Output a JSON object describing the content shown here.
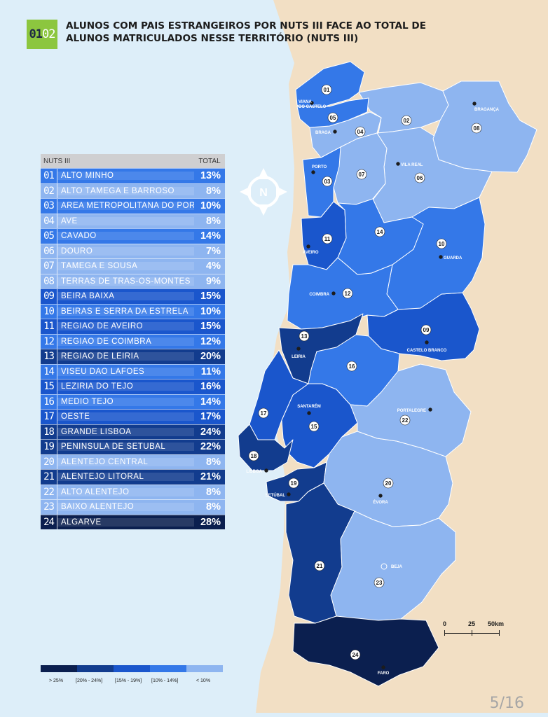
{
  "header": {
    "badge_number": "01",
    "badge_sub": "02",
    "title": "ALUNOS COM PAIS ESTRANGEIROS POR NUTS III FACE AO TOTAL DE ALUNOS MATRICULADOS NESSE TERRITÓRIO (NUTS III)"
  },
  "table": {
    "col_region": "NUTS III",
    "col_total": "TOTAL",
    "rows": [
      {
        "code": "01",
        "name": "ALTO MINHO",
        "value": "13%",
        "pct": 13
      },
      {
        "code": "02",
        "name": "ALTO TÂMEGA E BARROSO",
        "value": "8%",
        "pct": 8
      },
      {
        "code": "03",
        "name": "ÁREA METROPOLITANA DO PORTO",
        "value": "10%",
        "pct": 10
      },
      {
        "code": "04",
        "name": "AVE",
        "value": "8%",
        "pct": 8
      },
      {
        "code": "05",
        "name": "CÁVADO",
        "value": "14%",
        "pct": 14
      },
      {
        "code": "06",
        "name": "DOURO",
        "value": "7%",
        "pct": 7
      },
      {
        "code": "07",
        "name": "TÂMEGA E SOUSA",
        "value": "4%",
        "pct": 4
      },
      {
        "code": "08",
        "name": "TERRAS DE TRÁS-OS-MONTES",
        "value": "9%",
        "pct": 9
      },
      {
        "code": "09",
        "name": "BEIRA BAIXA",
        "value": "15%",
        "pct": 15
      },
      {
        "code": "10",
        "name": "BEIRAS E SERRA DA ESTRELA",
        "value": "10%",
        "pct": 10
      },
      {
        "code": "11",
        "name": "REGIÃO DE AVEIRO",
        "value": "15%",
        "pct": 15
      },
      {
        "code": "12",
        "name": "REGIÃO DE COIMBRA",
        "value": "12%",
        "pct": 12
      },
      {
        "code": "13",
        "name": "REGIÃO DE LEIRIA",
        "value": "20%",
        "pct": 20
      },
      {
        "code": "14",
        "name": "VISEU DÃO LAFÕES",
        "value": "11%",
        "pct": 11
      },
      {
        "code": "15",
        "name": "LEZÍRIA DO TEJO",
        "value": "16%",
        "pct": 16
      },
      {
        "code": "16",
        "name": "MÉDIO TEJO",
        "value": "14%",
        "pct": 14
      },
      {
        "code": "17",
        "name": "OESTE",
        "value": "17%",
        "pct": 17
      },
      {
        "code": "18",
        "name": "GRANDE LISBOA",
        "value": "24%",
        "pct": 24
      },
      {
        "code": "19",
        "name": "PENÍNSULA DE SETÚBAL",
        "value": "22%",
        "pct": 22
      },
      {
        "code": "20",
        "name": "ALENTEJO CENTRAL",
        "value": "8%",
        "pct": 8
      },
      {
        "code": "21",
        "name": "ALENTEJO LITORAL",
        "value": "21%",
        "pct": 21
      },
      {
        "code": "22",
        "name": "ALTO ALENTEJO",
        "value": "8%",
        "pct": 8
      },
      {
        "code": "23",
        "name": "BAIXO ALENTEJO",
        "value": "8%",
        "pct": 8
      },
      {
        "code": "24",
        "name": "ALGARVE",
        "value": "28%",
        "pct": 28
      }
    ]
  },
  "compass_letter": "N",
  "legend": {
    "classes": [
      {
        "label": "> 25%",
        "color": "#0b1f4f"
      },
      {
        "label": "[20% - 24%]",
        "color": "#123c8e"
      },
      {
        "label": "[15% - 19%]",
        "color": "#1a56cc"
      },
      {
        "label": "[10% - 14%]",
        "color": "#3478e8"
      },
      {
        "label": "< 10%",
        "color": "#8eb5f0"
      }
    ]
  },
  "scale": {
    "labels": [
      "0",
      "25",
      "50km"
    ]
  },
  "cities": [
    "VIANA DO CASTELO",
    "BRAGA",
    "PORTO",
    "BRAGANÇA",
    "VILA REAL",
    "AVEIRO",
    "GUARDA",
    "COIMBRA",
    "CASTELO BRANCO",
    "LEIRIA",
    "SANTARÉM",
    "PORTALEGRE",
    "LISBOA",
    "SETÚBAL",
    "ÉVORA",
    "BEJA",
    "FARO"
  ],
  "colors": {
    "sea": "#ddeef9",
    "land": "#f2dfc4",
    "header_text": "#1c1c1c",
    "badge": "#8cc63f",
    "table_header": "#cfcfd1"
  },
  "page_number": "5/16"
}
